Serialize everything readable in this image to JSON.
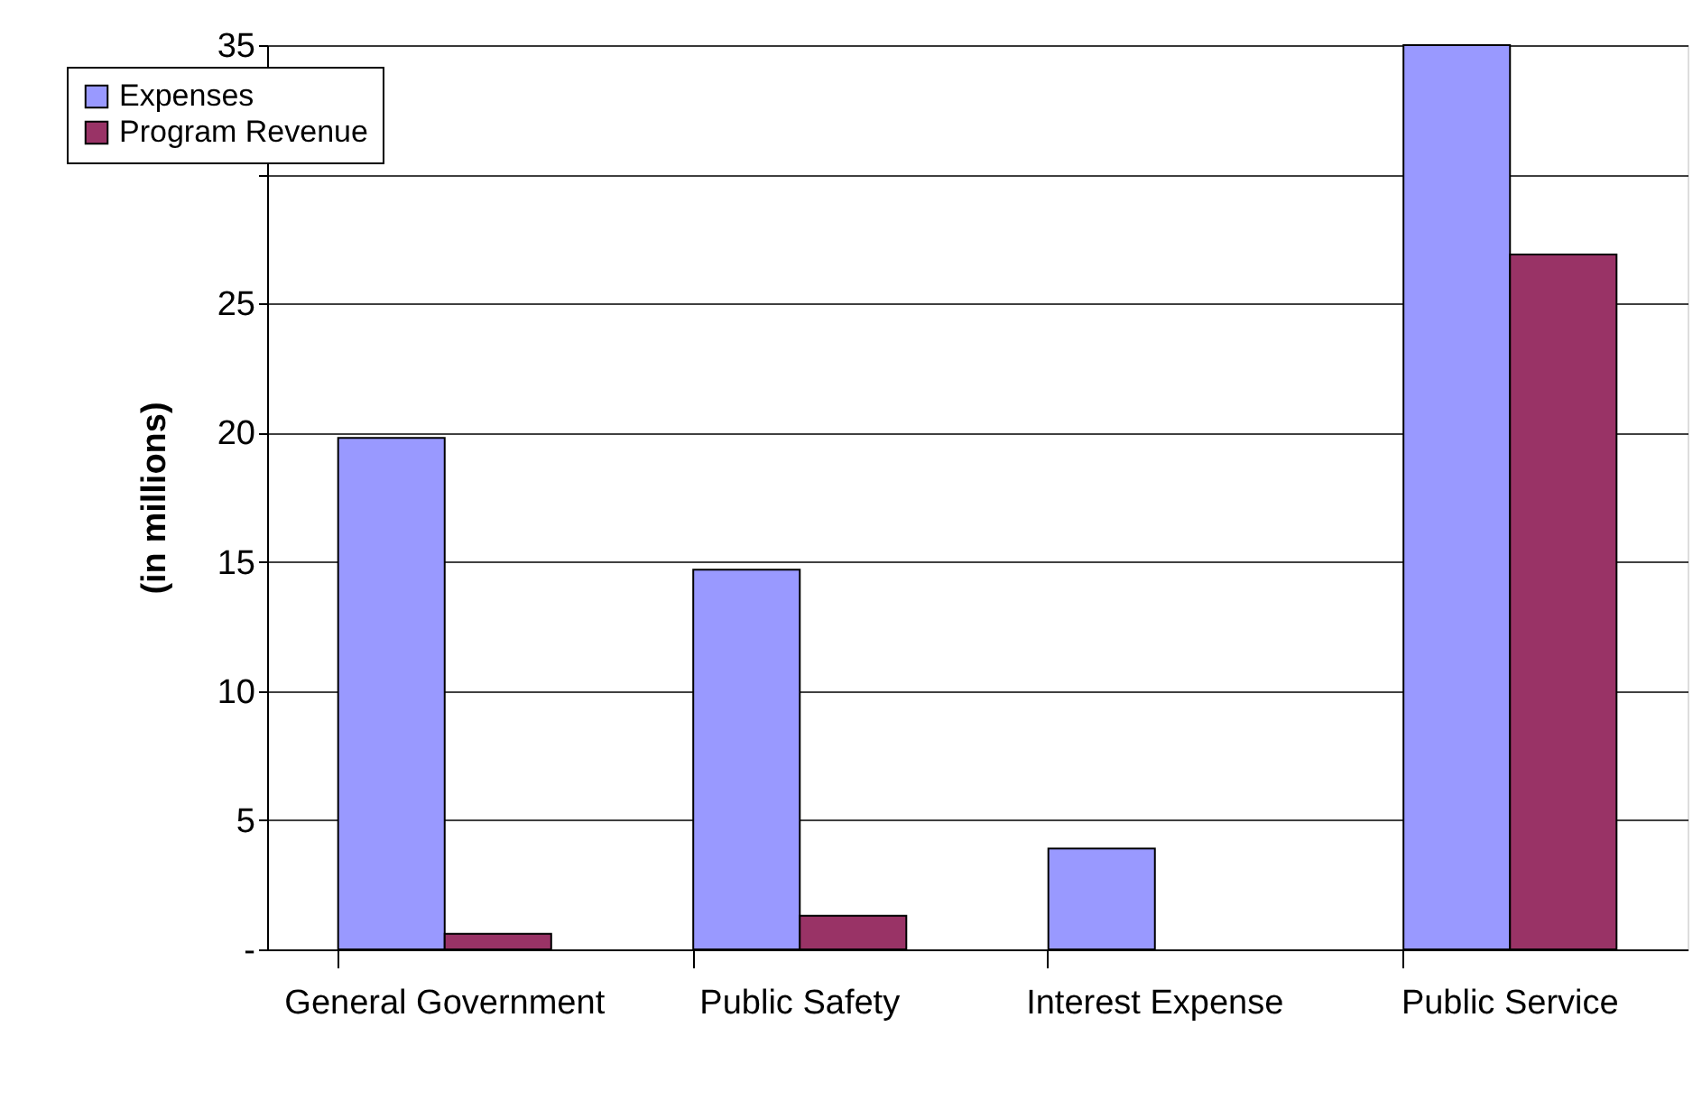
{
  "chart_data": {
    "type": "bar",
    "ylabel": "(in millions)",
    "categories": [
      "General Government",
      "Public Safety",
      "Interest Expense",
      "Public Service"
    ],
    "series": [
      {
        "name": "Expenses",
        "color": "#9999ff",
        "values": [
          19.8,
          14.7,
          3.9,
          35
        ]
      },
      {
        "name": "Program Revenue",
        "color": "#993366",
        "values": [
          0.6,
          1.3,
          null,
          26.9
        ]
      }
    ],
    "ylim": [
      0,
      35
    ],
    "yticks": [
      {
        "value": 0,
        "label": "-"
      },
      5,
      10,
      15,
      20,
      25,
      {
        "value": 30,
        "label": null
      },
      35
    ],
    "grid": "y",
    "legend": "top left"
  }
}
